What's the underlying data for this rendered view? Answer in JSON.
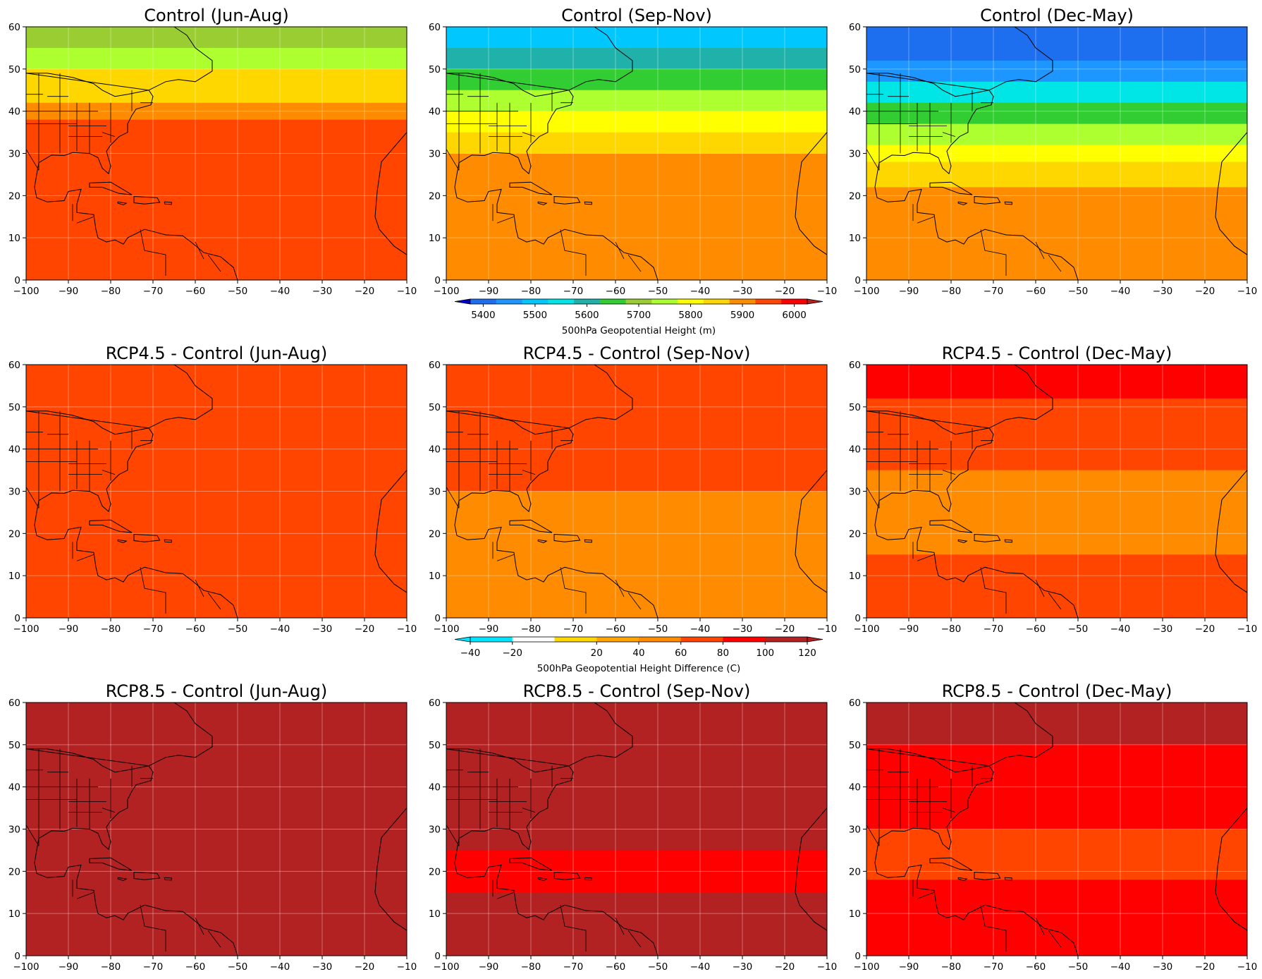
{
  "panels": [
    {
      "id": "control-jja",
      "title": "Control (Jun-Aug)",
      "palette": "abs",
      "bands": [
        {
          "lat": 60,
          "v": 5700
        },
        {
          "lat": 55,
          "v": 5770
        },
        {
          "lat": 50,
          "v": 5830
        },
        {
          "lat": 46,
          "v": 5870
        },
        {
          "lat": 42,
          "v": 5900
        },
        {
          "lat": 38,
          "v": 5930
        },
        {
          "lat": 0,
          "v": 5925
        }
      ]
    },
    {
      "id": "control-son",
      "title": "Control (Sep-Nov)",
      "palette": "abs",
      "bands": [
        {
          "lat": 60,
          "v": 5480
        },
        {
          "lat": 55,
          "v": 5580
        },
        {
          "lat": 50,
          "v": 5660
        },
        {
          "lat": 45,
          "v": 5740
        },
        {
          "lat": 40,
          "v": 5810
        },
        {
          "lat": 35,
          "v": 5860
        },
        {
          "lat": 30,
          "v": 5890
        },
        {
          "lat": 20,
          "v": 5910
        },
        {
          "lat": 0,
          "v": 5905
        }
      ]
    },
    {
      "id": "control-djfmam",
      "title": "Control (Dec-May)",
      "palette": "abs",
      "bands": [
        {
          "lat": 60,
          "v": 5390
        },
        {
          "lat": 52,
          "v": 5470
        },
        {
          "lat": 47,
          "v": 5560
        },
        {
          "lat": 42,
          "v": 5660
        },
        {
          "lat": 37,
          "v": 5740
        },
        {
          "lat": 32,
          "v": 5800
        },
        {
          "lat": 28,
          "v": 5850
        },
        {
          "lat": 22,
          "v": 5880
        },
        {
          "lat": 0,
          "v": 5890
        }
      ]
    },
    {
      "id": "rcp45-jja",
      "title": "RCP4.5 - Control (Jun-Aug)",
      "palette": "diff",
      "bands": [
        {
          "lat": 60,
          "v": 70
        },
        {
          "lat": 0,
          "v": 70
        }
      ]
    },
    {
      "id": "rcp45-son",
      "title": "RCP4.5 - Control (Sep-Nov)",
      "palette": "diff",
      "bands": [
        {
          "lat": 60,
          "v": 70
        },
        {
          "lat": 40,
          "v": 65
        },
        {
          "lat": 30,
          "v": 55
        },
        {
          "lat": 10,
          "v": 55
        },
        {
          "lat": 0,
          "v": 65
        }
      ]
    },
    {
      "id": "rcp45-djfmam",
      "title": "RCP4.5 - Control (Dec-May)",
      "palette": "diff",
      "bands": [
        {
          "lat": 60,
          "v": 90
        },
        {
          "lat": 52,
          "v": 75
        },
        {
          "lat": 45,
          "v": 68
        },
        {
          "lat": 35,
          "v": 55
        },
        {
          "lat": 15,
          "v": 60
        },
        {
          "lat": 0,
          "v": 65
        }
      ]
    },
    {
      "id": "rcp85-jja",
      "title": "RCP8.5 - Control (Jun-Aug)",
      "palette": "diff",
      "bands": [
        {
          "lat": 60,
          "v": 125
        },
        {
          "lat": 50,
          "v": 108
        },
        {
          "lat": 0,
          "v": 105
        }
      ]
    },
    {
      "id": "rcp85-son",
      "title": "RCP8.5 - Control (Sep-Nov)",
      "palette": "diff",
      "bands": [
        {
          "lat": 60,
          "v": 110
        },
        {
          "lat": 50,
          "v": 103
        },
        {
          "lat": 35,
          "v": 100
        },
        {
          "lat": 25,
          "v": 95
        },
        {
          "lat": 15,
          "v": 100
        },
        {
          "lat": 0,
          "v": 105
        }
      ]
    },
    {
      "id": "rcp85-djfmam",
      "title": "RCP8.5 - Control (Dec-May)",
      "palette": "diff",
      "bands": [
        {
          "lat": 60,
          "v": 110
        },
        {
          "lat": 50,
          "v": 90
        },
        {
          "lat": 40,
          "v": 80
        },
        {
          "lat": 30,
          "v": 78
        },
        {
          "lat": 18,
          "v": 95
        },
        {
          "lat": 0,
          "v": 105
        }
      ]
    }
  ],
  "axes": {
    "x_ticks": [
      "-100",
      "-90",
      "-80",
      "-70",
      "-60",
      "-50",
      "-40",
      "-30",
      "-20",
      "-10"
    ],
    "y_ticks": [
      "0",
      "10",
      "20",
      "30",
      "40",
      "50",
      "60"
    ],
    "xlim": [
      -100,
      -10
    ],
    "ylim": [
      0,
      60
    ]
  },
  "colorbars": {
    "abs": {
      "label": "500hPa Geopotential Height (m)",
      "levels": [
        5375,
        5425,
        5475,
        5525,
        5575,
        5625,
        5675,
        5725,
        5775,
        5825,
        5875,
        5925,
        5975,
        6025
      ],
      "tick_labels": [
        "5400",
        "5500",
        "5600",
        "5700",
        "5800",
        "5900",
        "6000"
      ],
      "colors": [
        "#0000c8",
        "#1e6ef0",
        "#1e96ff",
        "#00c8ff",
        "#00e6e6",
        "#20b2aa",
        "#32cd32",
        "#9acd32",
        "#adff2f",
        "#ffff00",
        "#ffd700",
        "#ff8c00",
        "#ff4500",
        "#ff0000",
        "#b22222"
      ]
    },
    "diff": {
      "label": "500hPa Geopotential Height Difference (C)",
      "levels": [
        -40,
        -20,
        0,
        20,
        40,
        60,
        80,
        100,
        120
      ],
      "tick_labels": [
        "−40",
        "−20",
        "20",
        "40",
        "60",
        "80",
        "100",
        "120"
      ],
      "colors": [
        "#00e5ff",
        "#00e5ff",
        "#ffffff",
        "#ffd700",
        "#ffa500",
        "#ff8c00",
        "#ff4500",
        "#ff0000",
        "#b22222"
      ]
    }
  }
}
